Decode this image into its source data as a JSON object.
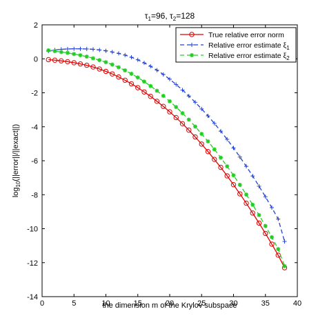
{
  "chart_data": {
    "type": "line",
    "title_parts": [
      "τ",
      "1",
      "=96, ",
      "τ",
      "2",
      "=128"
    ],
    "xlabel": "the dimension m of the Krylov subspace",
    "ylabel_parts": [
      "log",
      "10",
      "(||error||/||exact||)"
    ],
    "xlim": [
      0,
      40
    ],
    "ylim": [
      -14,
      2
    ],
    "xticks": [
      0,
      5,
      10,
      15,
      20,
      25,
      30,
      35,
      40
    ],
    "yticks": [
      2,
      0,
      -2,
      -4,
      -6,
      -8,
      -10,
      -12,
      -14
    ],
    "grid": false,
    "legend_position": "top-right",
    "x": [
      1,
      2,
      3,
      4,
      5,
      6,
      7,
      8,
      9,
      10,
      11,
      12,
      13,
      14,
      15,
      16,
      17,
      18,
      19,
      20,
      21,
      22,
      23,
      24,
      25,
      26,
      27,
      28,
      29,
      30,
      31,
      32,
      33,
      34,
      35,
      36,
      37,
      38
    ],
    "series": [
      {
        "name_parts": [
          "True relative error norm"
        ],
        "color": "#e00000",
        "line_style": "solid",
        "marker": "circle",
        "values": [
          -0.05,
          -0.08,
          -0.12,
          -0.17,
          -0.23,
          -0.3,
          -0.38,
          -0.48,
          -0.6,
          -0.74,
          -0.89,
          -1.07,
          -1.26,
          -1.47,
          -1.7,
          -1.95,
          -2.21,
          -2.5,
          -2.8,
          -3.12,
          -3.46,
          -3.82,
          -4.2,
          -4.6,
          -5.02,
          -5.46,
          -5.92,
          -6.39,
          -6.89,
          -7.41,
          -7.95,
          -8.5,
          -9.08,
          -9.67,
          -10.28,
          -10.91,
          -11.56,
          -12.3
        ]
      },
      {
        "name_parts": [
          "Relative error estimate ",
          "ξ",
          "1"
        ],
        "color": "#1f3fd6",
        "line_style": "dashed",
        "marker": "plus",
        "values": [
          0.45,
          0.52,
          0.56,
          0.58,
          0.59,
          0.59,
          0.58,
          0.56,
          0.52,
          0.47,
          0.4,
          0.32,
          0.22,
          0.09,
          -0.06,
          -0.24,
          -0.44,
          -0.67,
          -0.92,
          -1.2,
          -1.51,
          -1.84,
          -2.19,
          -2.56,
          -2.95,
          -3.36,
          -3.8,
          -4.26,
          -4.74,
          -5.25,
          -5.78,
          -6.33,
          -6.9,
          -7.5,
          -8.12,
          -8.76,
          -9.43,
          -10.75
        ]
      },
      {
        "name_parts": [
          "Relative error estimate ",
          "ξ",
          "2"
        ],
        "color": "#22cc22",
        "line_style": "dashed",
        "marker": "asterisk",
        "values": [
          0.5,
          0.45,
          0.4,
          0.35,
          0.28,
          0.21,
          0.13,
          0.03,
          -0.08,
          -0.2,
          -0.34,
          -0.5,
          -0.68,
          -0.88,
          -1.1,
          -1.34,
          -1.6,
          -1.88,
          -2.18,
          -2.5,
          -2.84,
          -3.2,
          -3.58,
          -3.99,
          -4.42,
          -4.86,
          -5.33,
          -5.82,
          -6.33,
          -6.86,
          -7.42,
          -7.99,
          -8.59,
          -9.2,
          -9.84,
          -10.5,
          -11.2,
          -12.2
        ]
      }
    ]
  }
}
